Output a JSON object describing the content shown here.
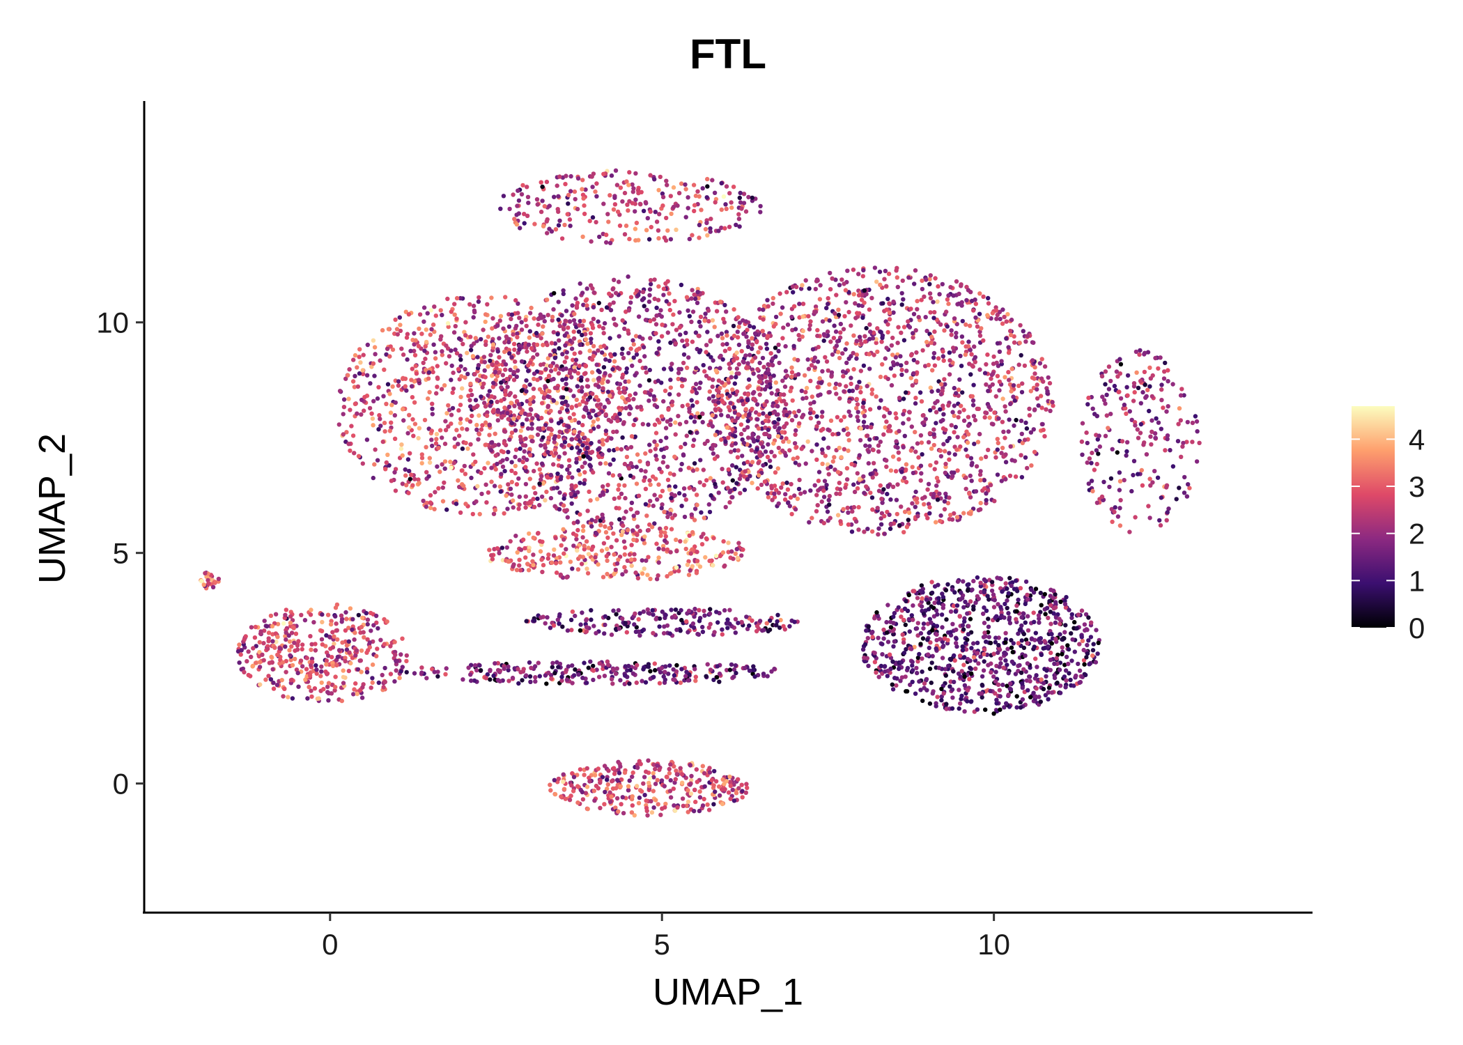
{
  "chart_data": {
    "type": "scatter",
    "title": "FTL",
    "xlabel": "UMAP_1",
    "ylabel": "UMAP_2",
    "xlim": [
      -2.8,
      14.8
    ],
    "ylim": [
      -2.8,
      14.8
    ],
    "x_ticks": [
      0,
      5,
      10
    ],
    "y_ticks": [
      0,
      5,
      10
    ],
    "grid": false,
    "legend": {
      "type": "colorbar",
      "position": "right",
      "range": [
        0,
        4.7
      ],
      "ticks": [
        0,
        1,
        2,
        3,
        4
      ],
      "palette": "magma",
      "colors": [
        "#000004",
        "#3b0f70",
        "#8c2981",
        "#de4968",
        "#fe9f6d",
        "#fcfdbf"
      ]
    },
    "clusters": [
      {
        "name": "main-left-arc",
        "cx": 2.3,
        "cy": 8.2,
        "rx": 2.2,
        "ry": 2.4,
        "n": 900,
        "mean_expr": 2.6
      },
      {
        "name": "main-center",
        "cx": 4.5,
        "cy": 8.2,
        "rx": 2.4,
        "ry": 2.8,
        "n": 1300,
        "mean_expr": 2.1
      },
      {
        "name": "main-right",
        "cx": 8.3,
        "cy": 8.3,
        "rx": 2.6,
        "ry": 2.9,
        "n": 1500,
        "mean_expr": 2.3
      },
      {
        "name": "top-band",
        "cx": 4.5,
        "cy": 12.5,
        "rx": 2.0,
        "ry": 0.8,
        "n": 260,
        "mean_expr": 2.4
      },
      {
        "name": "lower-arc",
        "cx": 4.3,
        "cy": 5.0,
        "rx": 2.0,
        "ry": 0.6,
        "n": 300,
        "mean_expr": 3.0
      },
      {
        "name": "right-edge",
        "cx": 12.2,
        "cy": 7.4,
        "rx": 0.9,
        "ry": 2.0,
        "n": 220,
        "mean_expr": 2.0
      },
      {
        "name": "bottom-right",
        "cx": 9.8,
        "cy": 3.0,
        "rx": 1.8,
        "ry": 1.5,
        "n": 900,
        "mean_expr": 1.3
      },
      {
        "name": "left-island",
        "cx": -0.1,
        "cy": 2.8,
        "rx": 1.3,
        "ry": 1.1,
        "n": 420,
        "mean_expr": 2.7
      },
      {
        "name": "left-tip",
        "cx": -1.8,
        "cy": 4.4,
        "rx": 0.15,
        "ry": 0.2,
        "n": 25,
        "mean_expr": 3.0
      },
      {
        "name": "bridge-strip",
        "cx": 4.0,
        "cy": 2.4,
        "rx": 3.0,
        "ry": 0.25,
        "n": 260,
        "mean_expr": 1.5
      },
      {
        "name": "mid-arc-strip",
        "cx": 5.0,
        "cy": 3.5,
        "rx": 2.2,
        "ry": 0.3,
        "n": 200,
        "mean_expr": 1.6
      },
      {
        "name": "bottom-island",
        "cx": 4.8,
        "cy": -0.1,
        "rx": 1.5,
        "ry": 0.6,
        "n": 320,
        "mean_expr": 2.6
      }
    ]
  }
}
